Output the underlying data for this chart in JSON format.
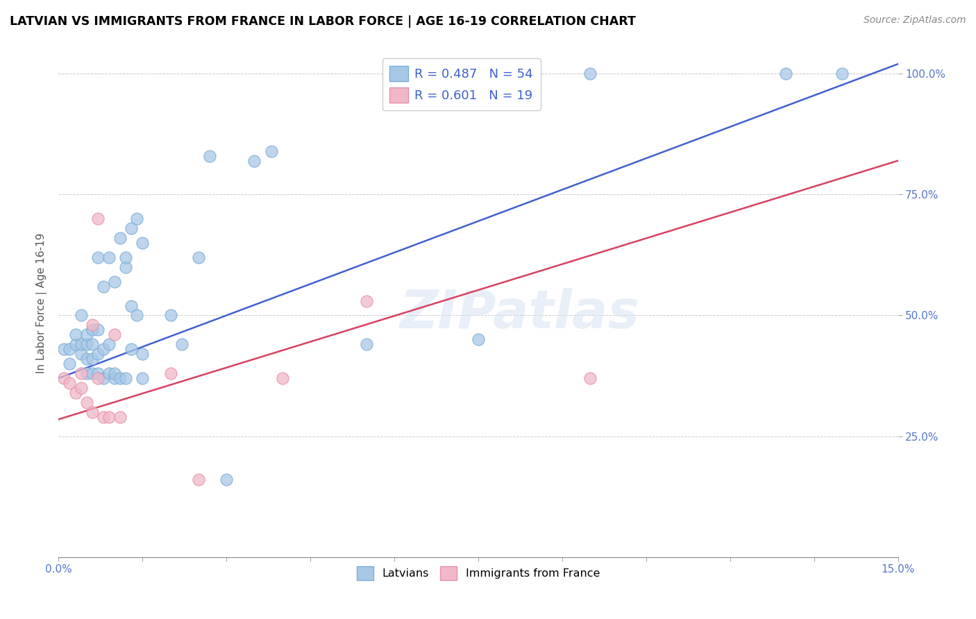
{
  "title": "LATVIAN VS IMMIGRANTS FROM FRANCE IN LABOR FORCE | AGE 16-19 CORRELATION CHART",
  "source": "Source: ZipAtlas.com",
  "ylabel": "In Labor Force | Age 16-19",
  "xlim": [
    0.0,
    0.15
  ],
  "ylim": [
    0.0,
    1.05
  ],
  "xtick_minor": [
    0.0,
    0.015,
    0.03,
    0.045,
    0.06,
    0.075,
    0.09,
    0.105,
    0.12,
    0.135,
    0.15
  ],
  "xticklabels_shown": {
    "0": "0.0%",
    "10": "15.0%"
  },
  "yticks": [
    0.25,
    0.5,
    0.75,
    1.0
  ],
  "yticklabels": [
    "25.0%",
    "50.0%",
    "75.0%",
    "100.0%"
  ],
  "blue_color": "#a8c8e8",
  "pink_color": "#f0b8c8",
  "blue_edge_color": "#7aadd4",
  "pink_edge_color": "#e890a8",
  "blue_line_color": "#4060d0",
  "pink_line_color": "#d84060",
  "legend_blue_text": "R = 0.487   N = 54",
  "legend_pink_text": "R = 0.601   N = 19",
  "legend_label_blue": "Latvians",
  "legend_label_pink": "Immigrants from France",
  "watermark": "ZIPatlas",
  "blue_trend_x": [
    0.0,
    0.15
  ],
  "blue_trend_y": [
    0.37,
    1.02
  ],
  "pink_trend_x": [
    0.0,
    0.15
  ],
  "pink_trend_y": [
    0.285,
    0.82
  ],
  "blue_scatter_x": [
    0.001,
    0.002,
    0.002,
    0.003,
    0.003,
    0.004,
    0.004,
    0.004,
    0.005,
    0.005,
    0.005,
    0.005,
    0.006,
    0.006,
    0.006,
    0.006,
    0.007,
    0.007,
    0.007,
    0.007,
    0.008,
    0.008,
    0.008,
    0.009,
    0.009,
    0.009,
    0.01,
    0.01,
    0.01,
    0.011,
    0.011,
    0.012,
    0.012,
    0.012,
    0.013,
    0.013,
    0.013,
    0.014,
    0.014,
    0.015,
    0.015,
    0.015,
    0.02,
    0.022,
    0.025,
    0.027,
    0.03,
    0.035,
    0.038,
    0.055,
    0.075,
    0.095,
    0.13,
    0.14
  ],
  "blue_scatter_y": [
    0.43,
    0.43,
    0.4,
    0.44,
    0.46,
    0.42,
    0.44,
    0.5,
    0.38,
    0.41,
    0.44,
    0.46,
    0.38,
    0.41,
    0.44,
    0.47,
    0.38,
    0.42,
    0.47,
    0.62,
    0.37,
    0.43,
    0.56,
    0.38,
    0.44,
    0.62,
    0.37,
    0.38,
    0.57,
    0.37,
    0.66,
    0.37,
    0.6,
    0.62,
    0.43,
    0.52,
    0.68,
    0.5,
    0.7,
    0.37,
    0.42,
    0.65,
    0.5,
    0.44,
    0.62,
    0.83,
    0.16,
    0.82,
    0.84,
    0.44,
    0.45,
    1.0,
    1.0,
    1.0
  ],
  "pink_scatter_x": [
    0.001,
    0.002,
    0.003,
    0.004,
    0.004,
    0.005,
    0.006,
    0.006,
    0.007,
    0.007,
    0.008,
    0.009,
    0.01,
    0.011,
    0.02,
    0.025,
    0.04,
    0.055,
    0.095
  ],
  "pink_scatter_y": [
    0.37,
    0.36,
    0.34,
    0.35,
    0.38,
    0.32,
    0.3,
    0.48,
    0.37,
    0.7,
    0.29,
    0.29,
    0.46,
    0.29,
    0.38,
    0.16,
    0.37,
    0.53,
    0.37
  ]
}
